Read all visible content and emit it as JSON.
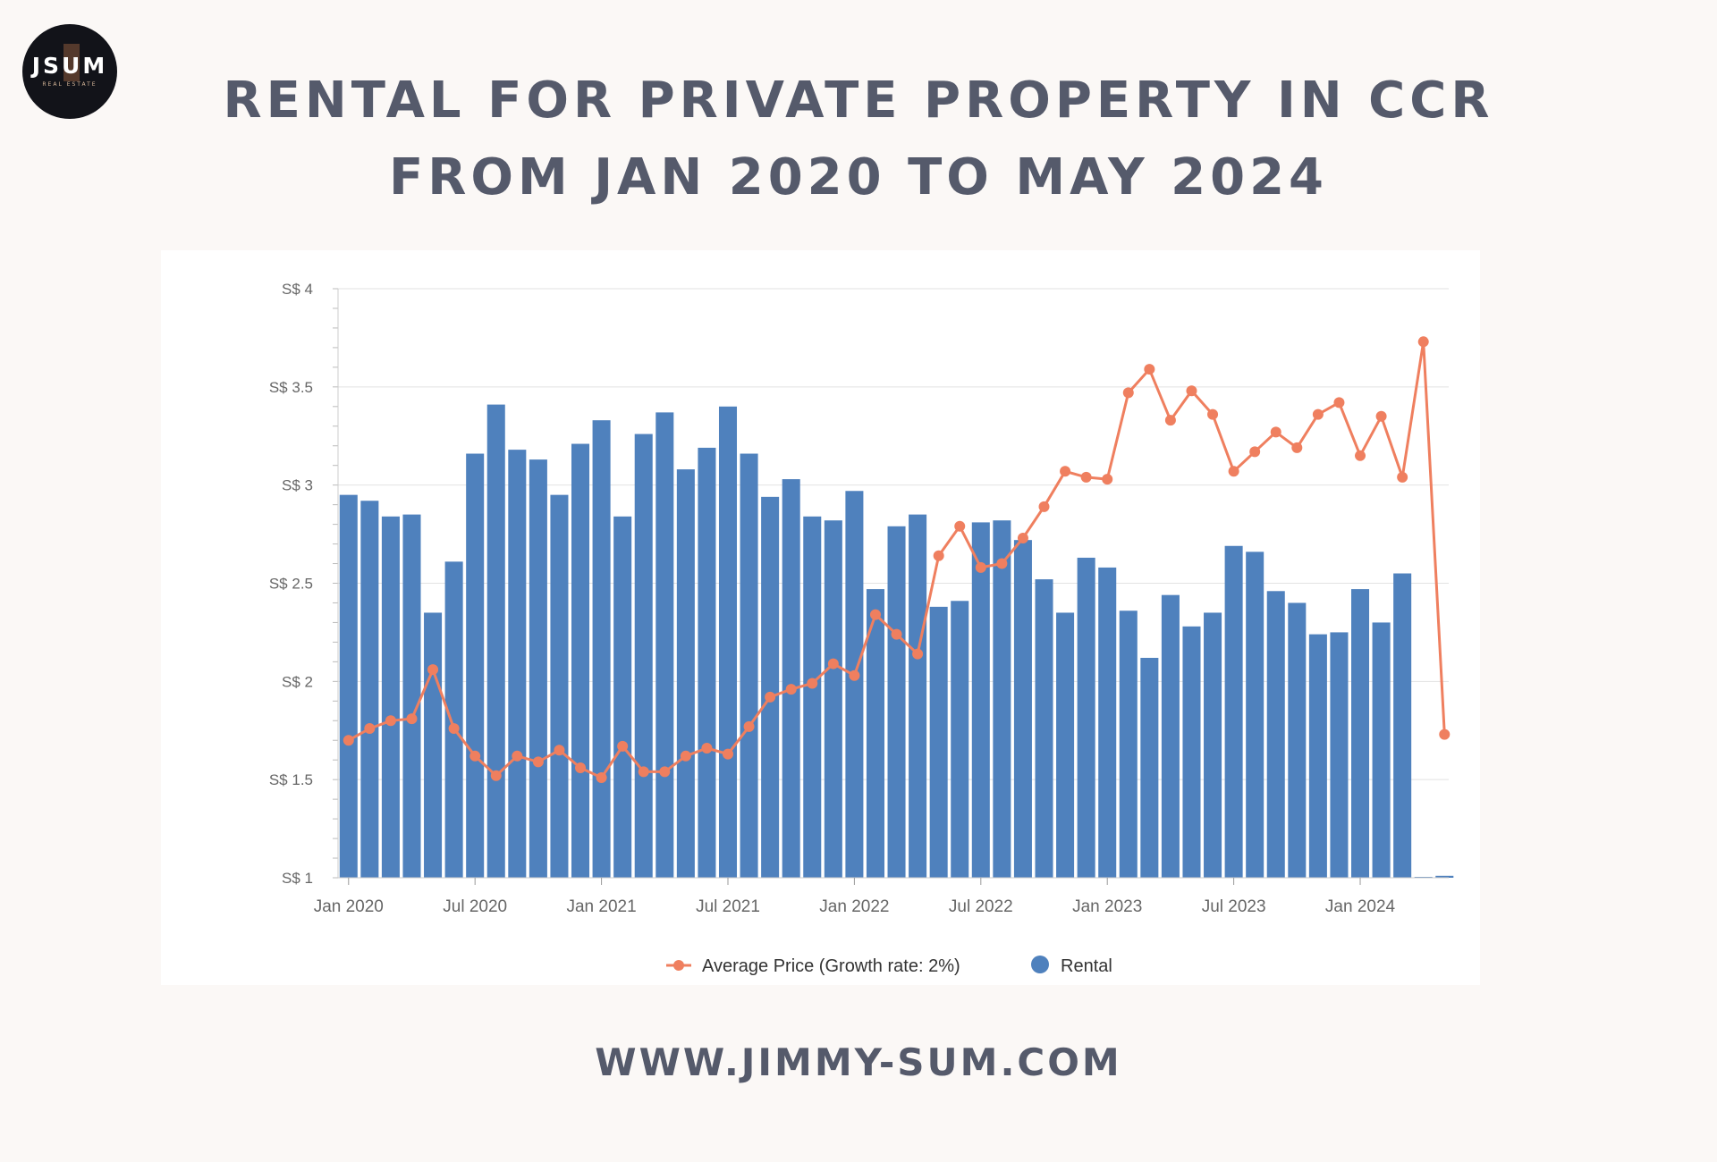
{
  "brand": {
    "logo_text": "JSUM",
    "logo_subtext": "REAL ESTATE"
  },
  "header": {
    "title_line1": "RENTAL FOR PRIVATE PROPERTY IN CCR",
    "title_line2": "FROM JAN 2020 TO MAY 2024"
  },
  "footer": {
    "url": "WWW.JIMMY-SUM.COM"
  },
  "colors": {
    "bar": "#4f81bd",
    "line": "#ef7f5f",
    "text": "#555a6b",
    "axis": "#666666",
    "grid": "#e2e2e2"
  },
  "chart_data": {
    "type": "bar",
    "title": "RENTAL FOR PRIVATE PROPERTY IN CCR FROM JAN 2020 TO MAY 2024",
    "xlabel": "",
    "ylabel": "",
    "ylim": [
      1,
      4
    ],
    "yticks": [
      1,
      1.5,
      2,
      2.5,
      3,
      3.5,
      4
    ],
    "ytick_labels": [
      "S$ 1",
      "S$ 1.5",
      "S$ 2",
      "S$ 2.5",
      "S$ 3",
      "S$ 3.5",
      "S$ 4"
    ],
    "xtick_labels": [
      {
        "index": 0,
        "label": "Jan 2020"
      },
      {
        "index": 6,
        "label": "Jul 2020"
      },
      {
        "index": 12,
        "label": "Jan 2021"
      },
      {
        "index": 18,
        "label": "Jul 2021"
      },
      {
        "index": 24,
        "label": "Jan 2022"
      },
      {
        "index": 30,
        "label": "Jul 2022"
      },
      {
        "index": 36,
        "label": "Jan 2023"
      },
      {
        "index": 42,
        "label": "Jul 2023"
      },
      {
        "index": 48,
        "label": "Jan 2024"
      }
    ],
    "n_categories": 53,
    "legend": [
      "Average Price (Growth rate: 2%)",
      "Rental"
    ],
    "series": [
      {
        "name": "Rental",
        "type": "bar",
        "values": [
          2.95,
          2.92,
          2.84,
          2.85,
          2.35,
          2.61,
          3.16,
          3.41,
          3.18,
          3.13,
          2.95,
          3.21,
          3.33,
          2.84,
          3.26,
          3.37,
          3.08,
          3.19,
          3.4,
          3.16,
          2.94,
          3.03,
          2.84,
          2.82,
          2.97,
          2.47,
          2.79,
          2.85,
          2.38,
          2.41,
          2.81,
          2.82,
          2.72,
          2.52,
          2.35,
          2.63,
          2.58,
          2.36,
          2.12,
          2.44,
          2.28,
          2.35,
          2.69,
          2.66,
          2.46,
          2.4,
          2.24,
          2.25,
          2.47,
          2.3,
          2.55,
          1.0,
          1.01
        ]
      },
      {
        "name": "Average Price (Growth rate: 2%)",
        "type": "line",
        "values": [
          1.7,
          1.76,
          1.8,
          1.81,
          2.06,
          1.76,
          1.62,
          1.52,
          1.62,
          1.59,
          1.65,
          1.56,
          1.51,
          1.67,
          1.54,
          1.54,
          1.62,
          1.66,
          1.63,
          1.77,
          1.92,
          1.96,
          1.99,
          2.09,
          2.03,
          2.34,
          2.24,
          2.14,
          2.64,
          2.79,
          2.58,
          2.6,
          2.73,
          2.89,
          3.07,
          3.04,
          3.03,
          3.47,
          3.59,
          3.33,
          3.48,
          3.36,
          3.07,
          3.17,
          3.27,
          3.19,
          3.36,
          3.42,
          3.15,
          3.35,
          3.04,
          3.73,
          1.73
        ]
      }
    ]
  }
}
